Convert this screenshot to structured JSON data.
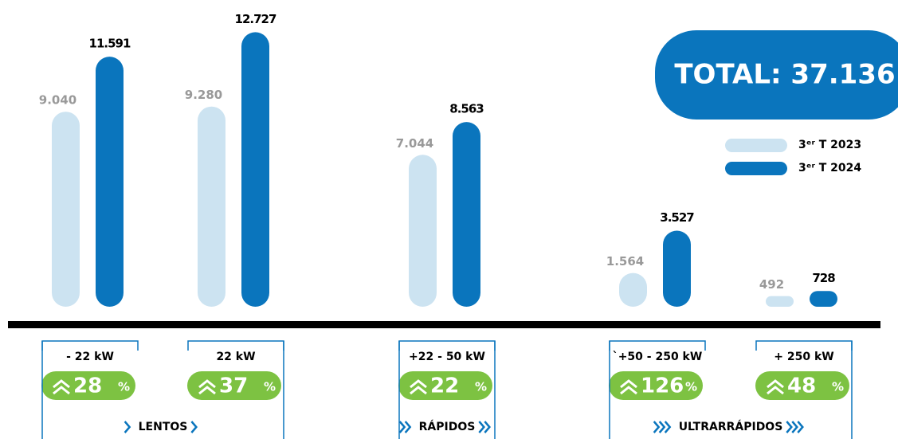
{
  "chart_data": {
    "type": "bar",
    "categories": [
      "- 22 kW",
      "22 kW",
      "+22 - 50 kW",
      "`+50 - 250 kW",
      "+ 250 kW"
    ],
    "series": [
      {
        "name": "3ᵉʳ T 2023",
        "color": "#cce3f1",
        "values": [
          9040,
          9280,
          7044,
          1564,
          492
        ],
        "value_labels": [
          "9.040",
          "9.280",
          "7.044",
          "1.564",
          "492"
        ]
      },
      {
        "name": "3ᵉʳ T 2024",
        "color": "#0a75bd",
        "values": [
          11591,
          12727,
          8563,
          3527,
          728
        ],
        "value_labels": [
          "11.591",
          "12.727",
          "8.563",
          "3.527",
          "728"
        ]
      }
    ],
    "ylim": [
      0,
      13000
    ],
    "total": "TOTAL: 37.136",
    "growth": [
      28,
      37,
      22,
      126,
      48
    ],
    "growth_unit": "%",
    "groups": [
      {
        "label": "LENTOS",
        "categories": [
          0,
          1
        ]
      },
      {
        "label": "RÁPIDOS",
        "categories": [
          2
        ]
      },
      {
        "label": "ULTRARRÁPIDOS",
        "categories": [
          3,
          4
        ]
      }
    ]
  }
}
